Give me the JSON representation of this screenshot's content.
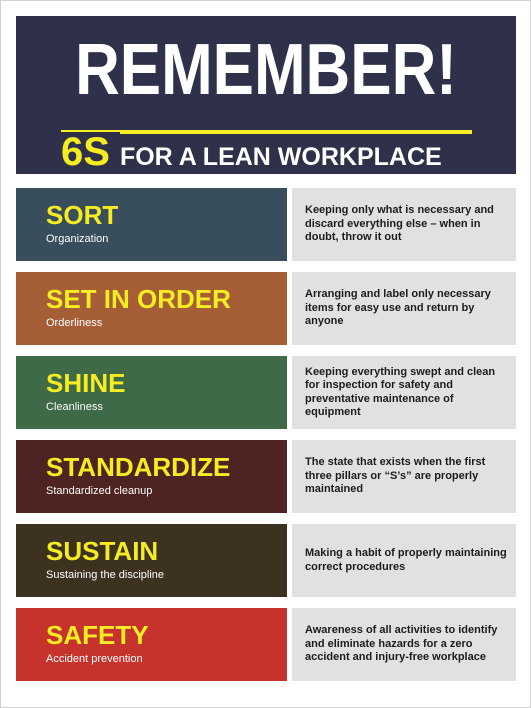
{
  "header": {
    "title": "REMEMBER!",
    "subtitle_highlight": "6S",
    "subtitle_text": "FOR A LEAN WORKPLACE"
  },
  "items": [
    {
      "title": "SORT",
      "subtitle": "Organization",
      "description": "Keeping only what is necessary and discard everything else – when in doubt, throw it out",
      "color": "#384e5d"
    },
    {
      "title": "SET IN ORDER",
      "subtitle": "Orderliness",
      "description": "Arranging and label only necessary items for easy use and return by anyone",
      "color": "#a65e37"
    },
    {
      "title": "SHINE",
      "subtitle": "Cleanliness",
      "description": "Keeping everything swept and clean for inspection for safety and preventative maintenance of equipment",
      "color": "#3e6a47"
    },
    {
      "title": "STANDARDIZE",
      "subtitle": "Standardized cleanup",
      "description": "The state that exists when the first three pillars or “S’s” are properly maintained",
      "color": "#4f2322"
    },
    {
      "title": "SUSTAIN",
      "subtitle": "Sustaining the discipline",
      "description": "Making a habit of properly maintaining correct procedures",
      "color": "#3d3220"
    },
    {
      "title": "SAFETY",
      "subtitle": "Accident prevention",
      "description": "Awareness of all activities to identify and eliminate hazards for a zero accident and injury-free workplace",
      "color": "#c5332c"
    }
  ],
  "colors": {
    "header_bg": "#2f3049",
    "accent_yellow": "#f6ec22",
    "description_bg": "#e1e1e1"
  }
}
